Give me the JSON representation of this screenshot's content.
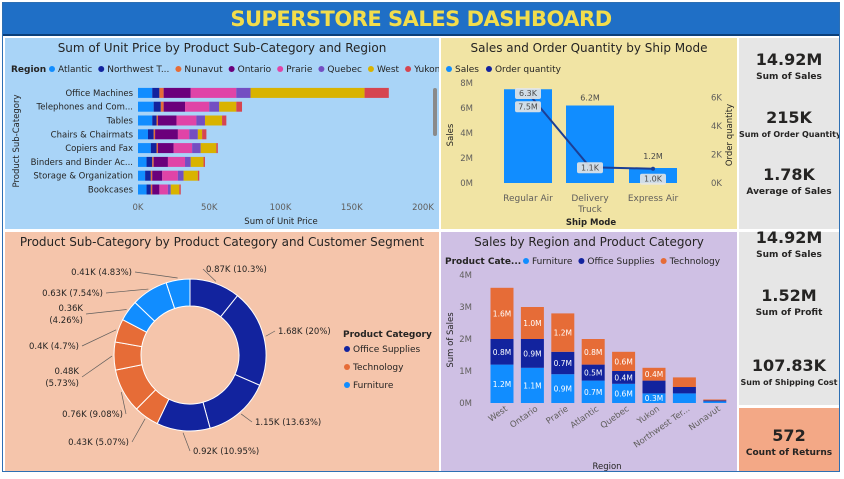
{
  "dashboard_title": "SUPERSTORE SALES DASHBOARD",
  "colors": {
    "atlantic": "#118dff",
    "northwest": "#12239e",
    "nunavut": "#e66c37",
    "ontario": "#6b007b",
    "prarie": "#e044a7",
    "quebec": "#744ec2",
    "west": "#d9b300",
    "yukon": "#d64550",
    "office_supplies": "#12239e",
    "technology": "#e66c37",
    "furniture": "#118dff"
  },
  "kpis_top": [
    {
      "value": "14.92M",
      "label": "Sum of Sales"
    },
    {
      "value": "215K",
      "label": "Sum of Order Quantity"
    },
    {
      "value": "1.78K",
      "label": "Average of Sales"
    }
  ],
  "kpis_bottom": [
    {
      "value": "14.92M",
      "label": "Sum of Sales"
    },
    {
      "value": "1.52M",
      "label": "Sum of Profit"
    },
    {
      "value": "107.83K",
      "label": "Sum of Shipping Cost"
    }
  ],
  "kpi_returns": {
    "value": "572",
    "label": "Count of Returns"
  },
  "chart_data": [
    {
      "type": "bar",
      "orientation": "horizontal",
      "stacked": true,
      "title": "Sum of Unit Price by Product Sub-Category and Region",
      "xlabel": "Sum of Unit Price",
      "ylabel": "Product Sub-Category",
      "legend_title": "Region",
      "legend_position": "top",
      "xlim": [
        0,
        200000
      ],
      "x_ticks": [
        "0K",
        "50K",
        "100K",
        "150K",
        "200K"
      ],
      "categories": [
        "Office Machines",
        "Telephones and Com...",
        "Tables",
        "Chairs & Chairmats",
        "Copiers and Fax",
        "Binders and Binder Ac...",
        "Storage & Organization",
        "Bookcases"
      ],
      "series": [
        {
          "name": "Atlantic",
          "values": [
            10000,
            11000,
            10000,
            7000,
            9000,
            6000,
            5000,
            6000
          ]
        },
        {
          "name": "Northwest T...",
          "values": [
            5000,
            5000,
            3000,
            4000,
            4000,
            4000,
            4000,
            3000
          ]
        },
        {
          "name": "Nunavut",
          "values": [
            3000,
            2000,
            1000,
            1000,
            1000,
            1000,
            1000,
            1000
          ]
        },
        {
          "name": "Ontario",
          "values": [
            19000,
            15000,
            13000,
            16000,
            11000,
            10000,
            7000,
            5000
          ]
        },
        {
          "name": "Prarie",
          "values": [
            32000,
            17000,
            14000,
            8000,
            13000,
            12000,
            11000,
            6000
          ]
        },
        {
          "name": "Quebec",
          "values": [
            10000,
            7000,
            6000,
            6000,
            6000,
            4000,
            4000,
            2000
          ]
        },
        {
          "name": "West",
          "values": [
            80000,
            12000,
            12000,
            3000,
            11000,
            9000,
            10000,
            6000
          ]
        },
        {
          "name": "Yukon",
          "values": [
            17000,
            4000,
            3000,
            3000,
            1000,
            1000,
            1000,
            1000
          ]
        }
      ]
    },
    {
      "type": "bar",
      "combo_line": true,
      "title": "Sales and Order Quantity by Ship Mode",
      "xlabel": "Ship Mode",
      "ylabel": "Sales",
      "y2label": "Order quantity",
      "ylim": [
        0,
        8000000
      ],
      "y_ticks": [
        "0M",
        "2M",
        "4M",
        "6M",
        "8M"
      ],
      "y2lim": [
        0,
        7000
      ],
      "y2_ticks": [
        "0K",
        "2K",
        "4K",
        "6K"
      ],
      "categories": [
        "Regular Air",
        "Delivery Truck",
        "Express Air"
      ],
      "category_label_lines": [
        [
          "Regular Air"
        ],
        [
          "Delivery",
          "Truck"
        ],
        [
          "Express Air"
        ]
      ],
      "series": [
        {
          "name": "Sales",
          "values": [
            7500000,
            6200000,
            1200000
          ],
          "labels": [
            "7.5M",
            "6.2M",
            "1.2M"
          ]
        },
        {
          "name": "Order quantity",
          "values": [
            6300,
            1100,
            1000
          ],
          "labels": [
            "6.3K",
            "1.1K",
            "1.0K"
          ]
        }
      ]
    },
    {
      "type": "pie",
      "variant": "donut",
      "title": "Product Sub-Category by Product Category and Customer Segment",
      "legend_title": "Product Category",
      "legend": [
        "Office Supplies",
        "Technology",
        "Furniture"
      ],
      "slices": [
        {
          "category": "Office Supplies",
          "value": 0.87,
          "label": "0.87K (10.3%)"
        },
        {
          "category": "Office Supplies",
          "value": 1.68,
          "label": "1.68K (20%)"
        },
        {
          "category": "Office Supplies",
          "value": 1.15,
          "label": "1.15K (13.63%)"
        },
        {
          "category": "Office Supplies",
          "value": 0.92,
          "label": "0.92K (10.95%)"
        },
        {
          "category": "Technology",
          "value": 0.43,
          "label": "0.43K (5.07%)"
        },
        {
          "category": "Technology",
          "value": 0.76,
          "label": "0.76K (9.08%)"
        },
        {
          "category": "Technology",
          "value": 0.48,
          "label": "0.48K (5.73%)"
        },
        {
          "category": "Technology",
          "value": 0.4,
          "label": "0.4K (4.7%)"
        },
        {
          "category": "Furniture",
          "value": 0.36,
          "label": "0.36K (4.26%)"
        },
        {
          "category": "Furniture",
          "value": 0.63,
          "label": "0.63K (7.54%)"
        },
        {
          "category": "Furniture",
          "value": 0.41,
          "label": "0.41K (4.83%)"
        }
      ]
    },
    {
      "type": "bar",
      "stacked": true,
      "title": "Sales by Region and Product Category",
      "xlabel": "Region",
      "ylabel": "Sum of Sales",
      "legend_title": "Product Cate...",
      "legend_position": "top",
      "ylim": [
        0,
        4000000
      ],
      "y_ticks": [
        "0M",
        "1M",
        "2M",
        "3M",
        "4M"
      ],
      "categories": [
        "West",
        "Ontario",
        "Prarie",
        "Atlantic",
        "Quebec",
        "Yukon",
        "Northwest Ter...",
        "Nunavut"
      ],
      "series": [
        {
          "name": "Furniture",
          "values": [
            1200000,
            1100000,
            900000,
            700000,
            600000,
            300000,
            300000,
            50000
          ],
          "labels": [
            "1.2M",
            "1.1M",
            "0.9M",
            "0.7M",
            "0.6M",
            "0.3M",
            "",
            ""
          ]
        },
        {
          "name": "Office Supplies",
          "values": [
            800000,
            900000,
            700000,
            500000,
            400000,
            400000,
            200000,
            30000
          ],
          "labels": [
            "0.8M",
            "0.9M",
            "0.7M",
            "0.5M",
            "0.4M",
            "",
            "",
            ""
          ]
        },
        {
          "name": "Technology",
          "values": [
            1600000,
            1000000,
            1200000,
            800000,
            600000,
            400000,
            300000,
            30000
          ],
          "labels": [
            "1.6M",
            "1.0M",
            "1.2M",
            "0.8M",
            "0.6M",
            "0.4M",
            "",
            ""
          ]
        }
      ]
    }
  ]
}
